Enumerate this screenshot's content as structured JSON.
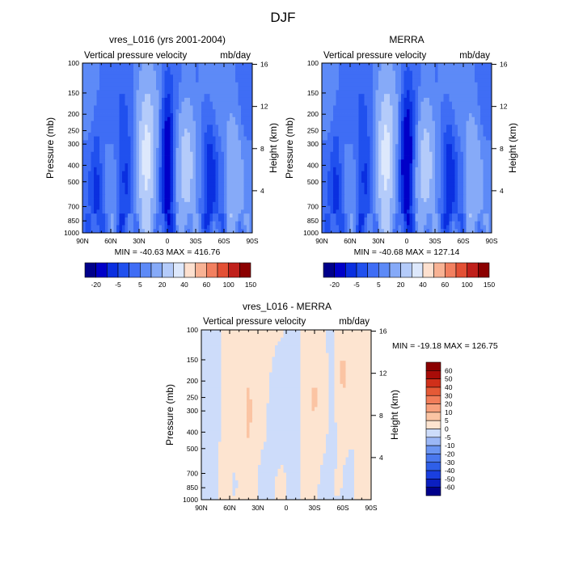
{
  "figure": {
    "title": "DJF"
  },
  "levels_main": [
    -20,
    -10,
    -5,
    0,
    5,
    10,
    20,
    30,
    40,
    50,
    60,
    80,
    100,
    150
  ],
  "colors_main": [
    "#00008b",
    "#0000c8",
    "#0a2fe0",
    "#2050ee",
    "#3f6df5",
    "#5d8af7",
    "#86aaf8",
    "#b4cbfa",
    "#dde8fc",
    "#fde0cf",
    "#f8b294",
    "#f28060",
    "#e35035",
    "#c0201b",
    "#8b0000"
  ],
  "levels_diff": [
    -60,
    -50,
    -40,
    -30,
    -20,
    -10,
    -5,
    0,
    5,
    10,
    20,
    30,
    40,
    50,
    60
  ],
  "colors_diff": [
    "#00008b",
    "#0b1fc0",
    "#1a3fe0",
    "#2f5fe8",
    "#4a78ee",
    "#6b95f2",
    "#9bb7f6",
    "#cddcfa",
    "#fde4d0",
    "#fbc4a3",
    "#f8a07c",
    "#f27d59",
    "#e55a36",
    "#d0301a",
    "#a80c08",
    "#8b0000"
  ],
  "chart_data": [
    {
      "type": "heatmap",
      "title": "vres_L016 (yrs 2001-2004)",
      "left_label": "Vertical pressure velocity",
      "right_label": "mb/day",
      "xlabel": "",
      "ylabel": "Pressure (mb)",
      "ylabel_right": "Height (km)",
      "x_ticks": [
        "90N",
        "60N",
        "30N",
        "0",
        "30S",
        "60S",
        "90S"
      ],
      "y_ticks": [
        "100",
        "150",
        "200",
        "250",
        "300",
        "400",
        "500",
        "700",
        "850",
        "1000"
      ],
      "y_ticks_right": [
        "16",
        "12",
        "8",
        "4"
      ],
      "stats": "MIN = -40.63  MAX = 416.76",
      "colorbar_labels": [
        "-20",
        "-5",
        "5",
        "20",
        "40",
        "60",
        "100",
        "150"
      ],
      "xlim": [
        90,
        -90
      ],
      "ylim": [
        1000,
        100
      ]
    },
    {
      "type": "heatmap",
      "title": "MERRA",
      "left_label": "Vertical pressure velocity",
      "right_label": "mb/day",
      "xlabel": "",
      "ylabel": "Pressure (mb)",
      "ylabel_right": "Height (km)",
      "x_ticks": [
        "90N",
        "60N",
        "30N",
        "0",
        "30S",
        "60S",
        "90S"
      ],
      "y_ticks": [
        "100",
        "150",
        "200",
        "250",
        "300",
        "400",
        "500",
        "700",
        "850",
        "1000"
      ],
      "y_ticks_right": [
        "16",
        "12",
        "8",
        "4"
      ],
      "stats": "MIN = -40.68  MAX = 127.14",
      "colorbar_labels": [
        "-20",
        "-5",
        "5",
        "20",
        "40",
        "60",
        "100",
        "150"
      ],
      "xlim": [
        90,
        -90
      ],
      "ylim": [
        1000,
        100
      ]
    },
    {
      "type": "heatmap",
      "title": "vres_L016 - MERRA",
      "left_label": "Vertical pressure velocity",
      "right_label": "mb/day",
      "xlabel": "",
      "ylabel": "Pressure (mb)",
      "ylabel_right": "Height (km)",
      "x_ticks": [
        "90N",
        "60N",
        "30N",
        "0",
        "30S",
        "60S",
        "90S"
      ],
      "y_ticks": [
        "100",
        "150",
        "200",
        "250",
        "300",
        "400",
        "500",
        "700",
        "850",
        "1000"
      ],
      "y_ticks_right": [
        "16",
        "12",
        "8",
        "4"
      ],
      "stats": "MIN = -19.18  MAX = 126.75",
      "colorbar_labels": [
        "60",
        "50",
        "40",
        "30",
        "20",
        "10",
        "5",
        "0",
        "-5",
        "-10",
        "-20",
        "-30",
        "-40",
        "-50",
        "-60"
      ],
      "xlim": [
        90,
        -90
      ],
      "ylim": [
        1000,
        100
      ]
    }
  ]
}
